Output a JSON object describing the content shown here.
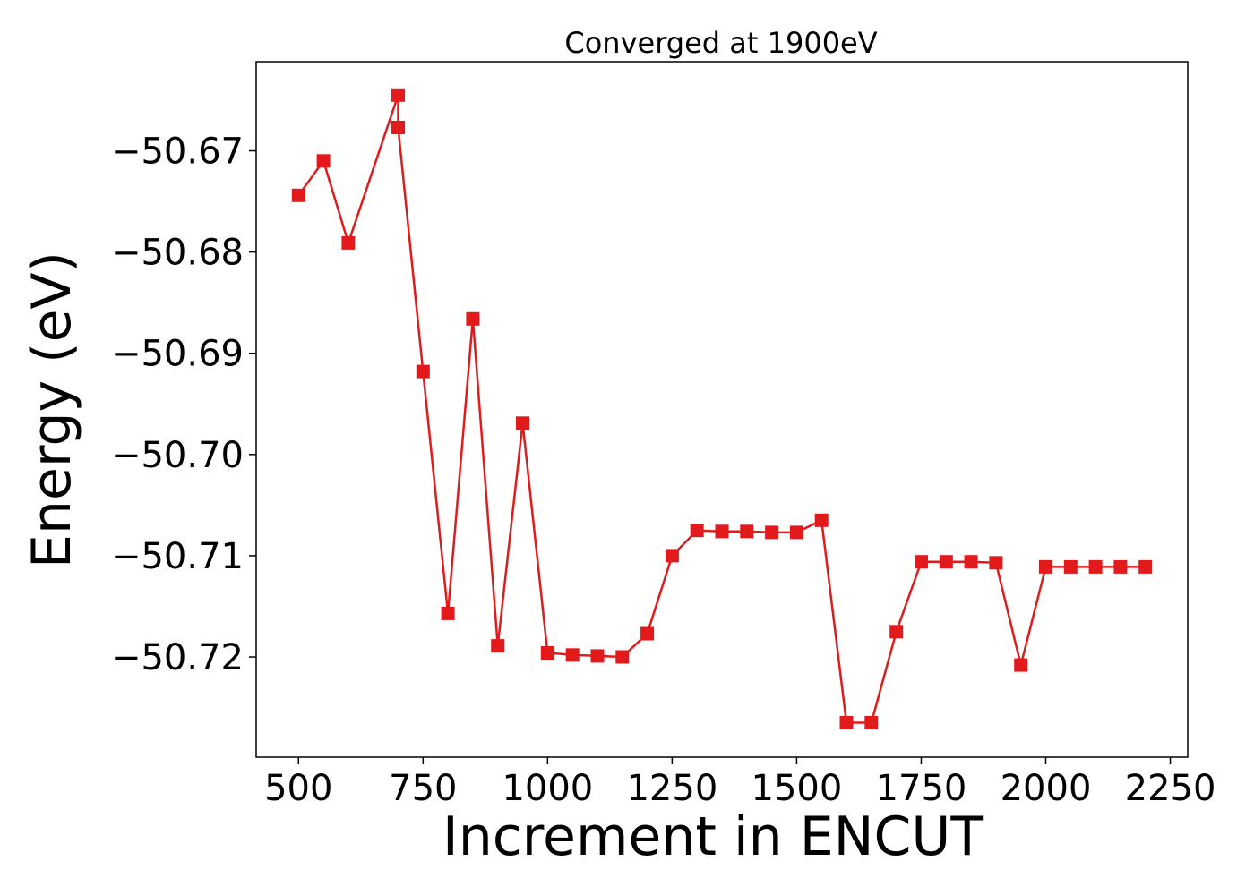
{
  "chart_data": {
    "type": "line",
    "title": "Converged at 1900eV",
    "xlabel": "Increment in ENCUT",
    "ylabel": "Energy (eV)",
    "xlim": [
      415,
      2285
    ],
    "ylim": [
      -50.7299,
      -50.6612
    ],
    "xticks": [
      500,
      750,
      1000,
      1250,
      1500,
      1750,
      2000,
      2250
    ],
    "xtick_labels": [
      "500",
      "750",
      "1000",
      "1250",
      "1500",
      "1750",
      "2000",
      "2250"
    ],
    "yticks": [
      -50.67,
      -50.68,
      -50.69,
      -50.7,
      -50.71,
      -50.72
    ],
    "ytick_labels": [
      "−50.67",
      "−50.68",
      "−50.69",
      "−50.70",
      "−50.71",
      "−50.72"
    ],
    "grid": false,
    "series": [
      {
        "color": "#e31a1c",
        "marker": "square",
        "points": [
          [
            500,
            -50.6744
          ],
          [
            550,
            -50.671
          ],
          [
            600,
            -50.6791
          ],
          [
            700,
            -50.6645
          ],
          [
            700,
            -50.6677
          ],
          [
            750,
            -50.6918
          ],
          [
            800,
            -50.7157
          ],
          [
            850,
            -50.6866
          ],
          [
            900,
            -50.7189
          ],
          [
            950,
            -50.6969
          ],
          [
            1000,
            -50.7196
          ],
          [
            1050,
            -50.7198
          ],
          [
            1100,
            -50.7199
          ],
          [
            1150,
            -50.72
          ],
          [
            1200,
            -50.7177
          ],
          [
            1250,
            -50.71
          ],
          [
            1300,
            -50.7075
          ],
          [
            1350,
            -50.7076
          ],
          [
            1400,
            -50.7076
          ],
          [
            1450,
            -50.7077
          ],
          [
            1500,
            -50.7077
          ],
          [
            1550,
            -50.7065
          ],
          [
            1600,
            -50.7265
          ],
          [
            1650,
            -50.7265
          ],
          [
            1700,
            -50.7175
          ],
          [
            1750,
            -50.7106
          ],
          [
            1800,
            -50.7106
          ],
          [
            1850,
            -50.7106
          ],
          [
            1900,
            -50.7107
          ],
          [
            1950,
            -50.7208
          ],
          [
            2000,
            -50.7111
          ],
          [
            2050,
            -50.7111
          ],
          [
            2100,
            -50.7111
          ],
          [
            2150,
            -50.7111
          ],
          [
            2200,
            -50.7111
          ]
        ]
      }
    ]
  }
}
